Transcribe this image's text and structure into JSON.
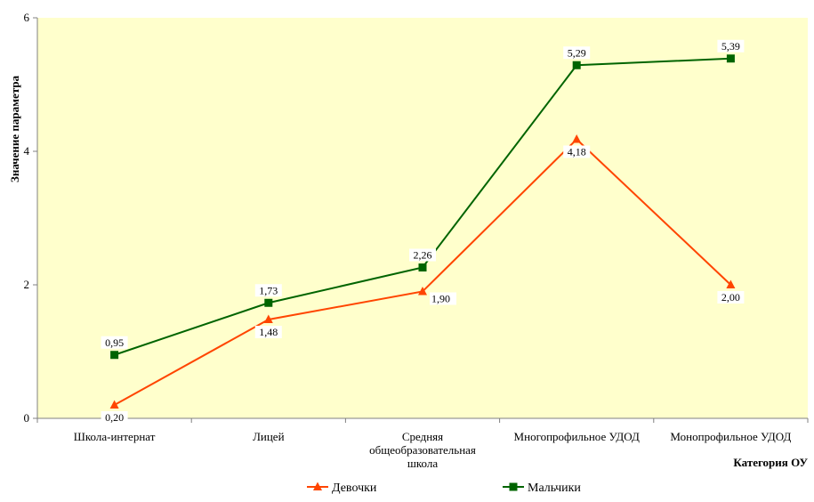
{
  "chart_data": {
    "type": "line",
    "categories": [
      [
        "Школа-интернат"
      ],
      [
        "Лицей"
      ],
      [
        "Средняя",
        "общеобразовательная",
        "школа"
      ],
      [
        "Многопрофильное УДОД"
      ],
      [
        "Монопрофильное УДОД"
      ]
    ],
    "series": [
      {
        "name": "Девочки",
        "color": "#FF4500",
        "marker": "triangle",
        "values": [
          0.2,
          1.48,
          1.9,
          4.18,
          2.0
        ],
        "labels": [
          "0,20",
          "1,48",
          "1,90",
          "4,18",
          "2,00"
        ]
      },
      {
        "name": "Мальчики",
        "color": "#006400",
        "marker": "square",
        "values": [
          0.95,
          1.73,
          2.26,
          5.29,
          5.39
        ],
        "labels": [
          "0,95",
          "1,73",
          "2,26",
          "5,29",
          "5,39"
        ]
      }
    ],
    "ylabel": "Значение параметра",
    "xlabel": "Категория ОУ",
    "ylim": [
      0,
      6
    ],
    "yticks": [
      0,
      2,
      4,
      6
    ],
    "ytick_labels": [
      "0",
      "2",
      "4",
      "6"
    ],
    "plot_background": "#FFFFCC",
    "grid": false,
    "legend_position": "bottom"
  }
}
